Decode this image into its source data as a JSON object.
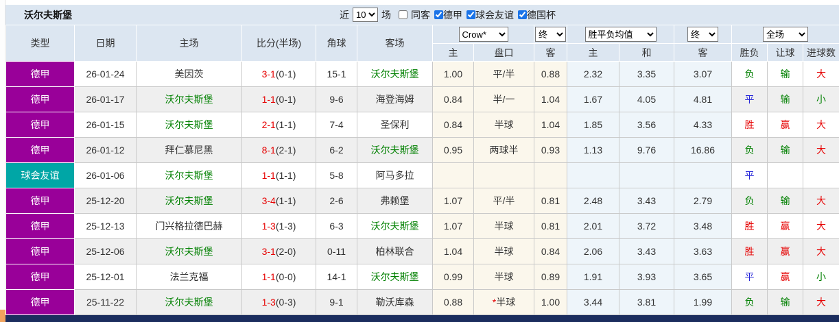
{
  "colors": {
    "header_bg": "#dce6f1",
    "stripe_gray": "#efefef",
    "cream_bg": "#fbf7ec",
    "pale_blue_bg": "#eef5fa",
    "border_gray": "#c9c9c9",
    "league_purple": "#990099",
    "league_teal": "#00a6a6",
    "team_green": "#008000",
    "score_red": "#e60000",
    "win_red": "#e60000",
    "draw_blue": "#2626d9",
    "lose_green": "#008000",
    "navy_bar": "#1b2d5e",
    "orange_fragment": "#f0a35e"
  },
  "header_bar": {
    "title": "沃尔夫斯堡",
    "recent_label": "近",
    "recent_select": "10",
    "matches_label": "场",
    "checkboxes": [
      {
        "label": "同客",
        "checked": false
      },
      {
        "label": "德甲",
        "checked": true
      },
      {
        "label": "球会友谊",
        "checked": true
      },
      {
        "label": "德国杯",
        "checked": true
      }
    ]
  },
  "table": {
    "columns": {
      "type": "类型",
      "date": "日期",
      "home": "主场",
      "score": "比分(半场)",
      "corner": "角球",
      "away": "客场"
    },
    "odds_group": {
      "company_select": "Crow*",
      "final_select": "终",
      "sub": [
        "主",
        "盘口",
        "客"
      ]
    },
    "avg_group": {
      "name_select": "胜平负均值",
      "final_select": "终",
      "sub": [
        "主",
        "和",
        "客"
      ]
    },
    "result_group": {
      "scope_select": "全场",
      "sub": [
        "胜负",
        "让球",
        "进球数"
      ]
    },
    "rows": [
      {
        "league": "德甲",
        "league_color": "#990099",
        "date": "26-01-24",
        "home": "美因茨",
        "home_green": false,
        "score": "3-1",
        "half": "(0-1)",
        "corner": "15-1",
        "away": "沃尔夫斯堡",
        "away_green": true,
        "odds_home": "1.00",
        "handicap_star": "",
        "handicap": "平/半",
        "odds_away": "0.88",
        "avg_home": "2.32",
        "avg_draw": "3.35",
        "avg_away": "3.07",
        "result": "负",
        "result_color": "green",
        "handicap_result": "输",
        "handicap_result_color": "green",
        "goals": "大",
        "goals_color": "red"
      },
      {
        "league": "德甲",
        "league_color": "#990099",
        "date": "26-01-17",
        "home": "沃尔夫斯堡",
        "home_green": true,
        "score": "1-1",
        "half": "(0-1)",
        "corner": "9-6",
        "away": "海登海姆",
        "away_green": false,
        "odds_home": "0.84",
        "handicap_star": "",
        "handicap": "半/一",
        "odds_away": "1.04",
        "avg_home": "1.67",
        "avg_draw": "4.05",
        "avg_away": "4.81",
        "result": "平",
        "result_color": "blue",
        "handicap_result": "输",
        "handicap_result_color": "green",
        "goals": "小",
        "goals_color": "green"
      },
      {
        "league": "德甲",
        "league_color": "#990099",
        "date": "26-01-15",
        "home": "沃尔夫斯堡",
        "home_green": true,
        "score": "2-1",
        "half": "(1-1)",
        "corner": "7-4",
        "away": "圣保利",
        "away_green": false,
        "odds_home": "0.84",
        "handicap_star": "",
        "handicap": "半球",
        "odds_away": "1.04",
        "avg_home": "1.85",
        "avg_draw": "3.56",
        "avg_away": "4.33",
        "result": "胜",
        "result_color": "red",
        "handicap_result": "赢",
        "handicap_result_color": "red",
        "goals": "大",
        "goals_color": "red"
      },
      {
        "league": "德甲",
        "league_color": "#990099",
        "date": "26-01-12",
        "home": "拜仁慕尼黑",
        "home_green": false,
        "score": "8-1",
        "half": "(2-1)",
        "corner": "6-2",
        "away": "沃尔夫斯堡",
        "away_green": true,
        "odds_home": "0.95",
        "handicap_star": "",
        "handicap": "两球半",
        "odds_away": "0.93",
        "avg_home": "1.13",
        "avg_draw": "9.76",
        "avg_away": "16.86",
        "result": "负",
        "result_color": "green",
        "handicap_result": "输",
        "handicap_result_color": "green",
        "goals": "大",
        "goals_color": "red"
      },
      {
        "league": "球会友谊",
        "league_color": "#00a6a6",
        "date": "26-01-06",
        "home": "沃尔夫斯堡",
        "home_green": true,
        "score": "1-1",
        "half": "(1-1)",
        "corner": "5-8",
        "away": "阿马多拉",
        "away_green": false,
        "odds_home": "",
        "handicap_star": "",
        "handicap": "",
        "odds_away": "",
        "avg_home": "",
        "avg_draw": "",
        "avg_away": "",
        "result": "平",
        "result_color": "blue",
        "handicap_result": "",
        "handicap_result_color": "",
        "goals": "",
        "goals_color": ""
      },
      {
        "league": "德甲",
        "league_color": "#990099",
        "date": "25-12-20",
        "home": "沃尔夫斯堡",
        "home_green": true,
        "score": "3-4",
        "half": "(1-1)",
        "corner": "2-6",
        "away": "弗赖堡",
        "away_green": false,
        "odds_home": "1.07",
        "handicap_star": "",
        "handicap": "平/半",
        "odds_away": "0.81",
        "avg_home": "2.48",
        "avg_draw": "3.43",
        "avg_away": "2.79",
        "result": "负",
        "result_color": "green",
        "handicap_result": "输",
        "handicap_result_color": "green",
        "goals": "大",
        "goals_color": "red"
      },
      {
        "league": "德甲",
        "league_color": "#990099",
        "date": "25-12-13",
        "home": "门兴格拉德巴赫",
        "home_green": false,
        "score": "1-3",
        "half": "(1-3)",
        "corner": "6-3",
        "away": "沃尔夫斯堡",
        "away_green": true,
        "odds_home": "1.07",
        "handicap_star": "",
        "handicap": "半球",
        "odds_away": "0.81",
        "avg_home": "2.01",
        "avg_draw": "3.72",
        "avg_away": "3.48",
        "result": "胜",
        "result_color": "red",
        "handicap_result": "赢",
        "handicap_result_color": "red",
        "goals": "大",
        "goals_color": "red"
      },
      {
        "league": "德甲",
        "league_color": "#990099",
        "date": "25-12-06",
        "home": "沃尔夫斯堡",
        "home_green": true,
        "score": "3-1",
        "half": "(2-0)",
        "corner": "0-11",
        "away": "柏林联合",
        "away_green": false,
        "odds_home": "1.04",
        "handicap_star": "",
        "handicap": "半球",
        "odds_away": "0.84",
        "avg_home": "2.06",
        "avg_draw": "3.43",
        "avg_away": "3.63",
        "result": "胜",
        "result_color": "red",
        "handicap_result": "赢",
        "handicap_result_color": "red",
        "goals": "大",
        "goals_color": "red"
      },
      {
        "league": "德甲",
        "league_color": "#990099",
        "date": "25-12-01",
        "home": "法兰克福",
        "home_green": false,
        "score": "1-1",
        "half": "(0-0)",
        "corner": "14-1",
        "away": "沃尔夫斯堡",
        "away_green": true,
        "odds_home": "0.99",
        "handicap_star": "",
        "handicap": "半球",
        "odds_away": "0.89",
        "avg_home": "1.91",
        "avg_draw": "3.93",
        "avg_away": "3.65",
        "result": "平",
        "result_color": "blue",
        "handicap_result": "赢",
        "handicap_result_color": "red",
        "goals": "小",
        "goals_color": "green"
      },
      {
        "league": "德甲",
        "league_color": "#990099",
        "date": "25-11-22",
        "home": "沃尔夫斯堡",
        "home_green": true,
        "score": "1-3",
        "half": "(0-3)",
        "corner": "9-1",
        "away": "勒沃库森",
        "away_green": false,
        "odds_home": "0.88",
        "handicap_star": "*",
        "handicap": "半球",
        "odds_away": "1.00",
        "avg_home": "3.44",
        "avg_draw": "3.81",
        "avg_away": "1.99",
        "result": "负",
        "result_color": "green",
        "handicap_result": "输",
        "handicap_result_color": "green",
        "goals": "大",
        "goals_color": "red"
      }
    ]
  }
}
